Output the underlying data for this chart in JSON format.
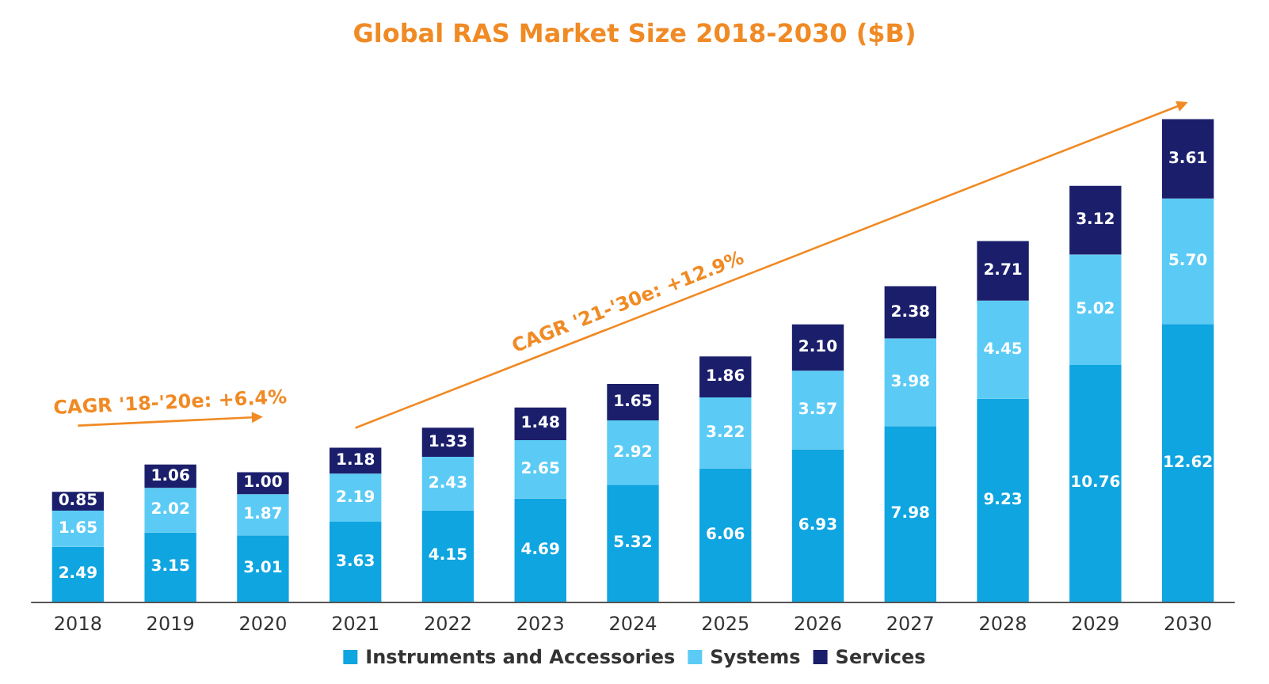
{
  "chart_data": {
    "type": "bar",
    "title": "Global RAS Market Size 2018-2030 ($B)",
    "stacked": true,
    "legend": "bottom",
    "categories": [
      "2018",
      "2019",
      "2020",
      "2021",
      "2022",
      "2023",
      "2024",
      "2025",
      "2026",
      "2027",
      "2028",
      "2029",
      "2030"
    ],
    "series": [
      {
        "name": "Instruments and Accessories",
        "color": "#0ea5e0",
        "values": [
          2.49,
          3.15,
          3.01,
          3.63,
          4.15,
          4.69,
          5.32,
          6.06,
          6.93,
          7.98,
          9.23,
          10.76,
          12.62
        ],
        "value_labels": [
          "2.49",
          "3.15",
          "3.01",
          "3.63",
          "4.15",
          "4.69",
          "5.32",
          "6.06",
          "6.93",
          "7.98",
          "9.23",
          "10.76",
          "12.62"
        ]
      },
      {
        "name": "Systems",
        "color": "#5bcbf5",
        "values": [
          1.65,
          2.02,
          1.87,
          2.19,
          2.43,
          2.65,
          2.92,
          3.22,
          3.57,
          3.98,
          4.45,
          5.02,
          5.7
        ],
        "value_labels": [
          "1.65",
          "2.02",
          "1.87",
          "2.19",
          "2.43",
          "2.65",
          "2.92",
          "3.22",
          "3.57",
          "3.98",
          "4.45",
          "5.02",
          "5.70"
        ]
      },
      {
        "name": "Services",
        "color": "#1b1f6b",
        "values": [
          0.85,
          1.06,
          1.0,
          1.18,
          1.33,
          1.48,
          1.65,
          1.86,
          2.1,
          2.38,
          2.71,
          3.12,
          3.61
        ],
        "value_labels": [
          "0.85",
          "1.06",
          "1.00",
          "1.18",
          "1.33",
          "1.48",
          "1.65",
          "1.86",
          "2.10",
          "2.38",
          "2.71",
          "3.12",
          "3.61"
        ]
      }
    ],
    "annotations": [
      "CAGR '18-'20e: +6.4%",
      "CAGR '21-'30e: +12.9%"
    ]
  }
}
